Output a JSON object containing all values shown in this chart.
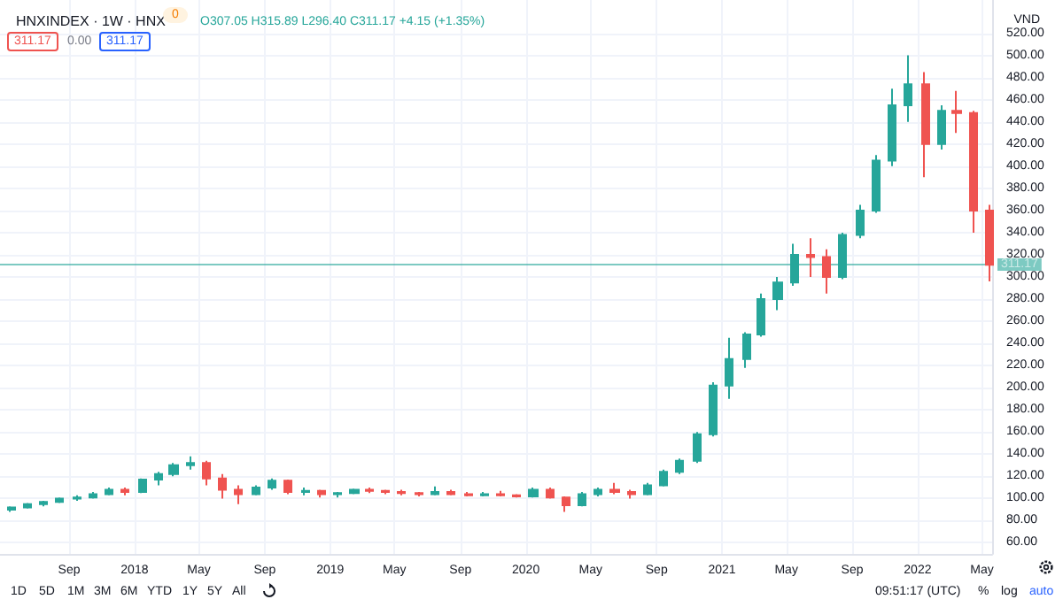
{
  "chart_data": {
    "type": "candlestick",
    "title": "HNXINDEX · 1W · HNX",
    "subtitle": "O307.05 H315.89 L296.40 C311.17 +4.15 (+1.35%)",
    "ylabel": "VND",
    "x": [
      "2017-05-15",
      "2017-06-15",
      "2017-07-15",
      "2017-08-15",
      "2017-09-15",
      "2017-10-15",
      "2017-11-15",
      "2017-12-15",
      "2018-01-15",
      "2018-02-15",
      "2018-03-15",
      "2018-04-15",
      "2018-05-15",
      "2018-06-15",
      "2018-07-15",
      "2018-08-15",
      "2018-09-15",
      "2018-10-15",
      "2018-11-15",
      "2018-12-15",
      "2019-01-15",
      "2019-02-15",
      "2019-03-15",
      "2019-04-15",
      "2019-05-15",
      "2019-06-15",
      "2019-07-15",
      "2019-08-15",
      "2019-09-15",
      "2019-10-15",
      "2019-11-15",
      "2019-12-15",
      "2020-01-15",
      "2020-02-15",
      "2020-03-15",
      "2020-04-15",
      "2020-05-15",
      "2020-06-15",
      "2020-07-15",
      "2020-08-15",
      "2020-09-15",
      "2020-10-15",
      "2020-11-15",
      "2020-12-15",
      "2021-01-15",
      "2021-02-15",
      "2021-03-15",
      "2021-04-15",
      "2021-05-15",
      "2021-06-15",
      "2021-07-15",
      "2021-08-15",
      "2021-09-15",
      "2021-10-15",
      "2021-11-15",
      "2021-12-15",
      "2022-01-15",
      "2022-02-15",
      "2022-03-15",
      "2022-04-15",
      "2022-05-15"
    ],
    "ohlc": [
      [
        90,
        93,
        88,
        92
      ],
      [
        92,
        96,
        91,
        95
      ],
      [
        95,
        98,
        93,
        97
      ],
      [
        97,
        101,
        96,
        100
      ],
      [
        100,
        103,
        98,
        101
      ],
      [
        101,
        106,
        100,
        104
      ],
      [
        104,
        110,
        103,
        108
      ],
      [
        108,
        110,
        103,
        106
      ],
      [
        106,
        118,
        105,
        117
      ],
      [
        117,
        124,
        112,
        122
      ],
      [
        122,
        132,
        120,
        130
      ],
      [
        130,
        138,
        126,
        132
      ],
      [
        132,
        134,
        112,
        118
      ],
      [
        118,
        122,
        100,
        108
      ],
      [
        108,
        112,
        95,
        104
      ],
      [
        104,
        112,
        103,
        110
      ],
      [
        110,
        118,
        108,
        116
      ],
      [
        116,
        117,
        104,
        106
      ],
      [
        106,
        110,
        103,
        107
      ],
      [
        107,
        108,
        101,
        104
      ],
      [
        104,
        106,
        101,
        105
      ],
      [
        105,
        109,
        104,
        108
      ],
      [
        108,
        110,
        105,
        107
      ],
      [
        107,
        108,
        104,
        106
      ],
      [
        106,
        108,
        103,
        105
      ],
      [
        105,
        106,
        102,
        104
      ],
      [
        104,
        111,
        103,
        106
      ],
      [
        106,
        108,
        103,
        104
      ],
      [
        104,
        106,
        102,
        103
      ],
      [
        103,
        106,
        102,
        104
      ],
      [
        104,
        107,
        102,
        103
      ],
      [
        103,
        104,
        101,
        102
      ],
      [
        102,
        110,
        101,
        108
      ],
      [
        108,
        110,
        100,
        101
      ],
      [
        101,
        102,
        88,
        94
      ],
      [
        94,
        106,
        93,
        104
      ],
      [
        104,
        110,
        102,
        108
      ],
      [
        108,
        114,
        104,
        106
      ],
      [
        106,
        108,
        100,
        104
      ],
      [
        104,
        114,
        103,
        112
      ],
      [
        112,
        126,
        111,
        124
      ],
      [
        124,
        136,
        122,
        134
      ],
      [
        134,
        160,
        132,
        158
      ],
      [
        158,
        205,
        156,
        202
      ],
      [
        202,
        245,
        190,
        226
      ],
      [
        226,
        250,
        218,
        248
      ],
      [
        248,
        285,
        246,
        280
      ],
      [
        280,
        300,
        270,
        295
      ],
      [
        295,
        330,
        292,
        320
      ],
      [
        320,
        335,
        300,
        318
      ],
      [
        318,
        325,
        285,
        300
      ],
      [
        300,
        340,
        298,
        338
      ],
      [
        338,
        365,
        335,
        360
      ],
      [
        360,
        410,
        358,
        405
      ],
      [
        405,
        470,
        400,
        455
      ],
      [
        455,
        500,
        440,
        474
      ],
      [
        474,
        485,
        390,
        420
      ],
      [
        420,
        455,
        415,
        450
      ],
      [
        450,
        468,
        430,
        448
      ],
      [
        448,
        450,
        340,
        360
      ],
      [
        360,
        365,
        296,
        311
      ]
    ],
    "colors": [
      "#26a69a",
      "#26a69a",
      "#26a69a",
      "#26a69a",
      "#26a69a",
      "#26a69a",
      "#26a69a",
      "#ef5350",
      "#26a69a",
      "#26a69a",
      "#26a69a",
      "#26a69a",
      "#ef5350",
      "#ef5350",
      "#ef5350",
      "#26a69a",
      "#26a69a",
      "#ef5350",
      "#26a69a",
      "#ef5350",
      "#26a69a",
      "#26a69a",
      "#ef5350",
      "#ef5350",
      "#ef5350",
      "#ef5350",
      "#26a69a",
      "#ef5350",
      "#ef5350",
      "#26a69a",
      "#ef5350",
      "#ef5350",
      "#26a69a",
      "#ef5350",
      "#ef5350",
      "#26a69a",
      "#26a69a",
      "#ef5350",
      "#ef5350",
      "#26a69a",
      "#26a69a",
      "#26a69a",
      "#26a69a",
      "#26a69a",
      "#26a69a",
      "#26a69a",
      "#26a69a",
      "#26a69a",
      "#26a69a",
      "#ef5350",
      "#ef5350",
      "#26a69a",
      "#26a69a",
      "#26a69a",
      "#26a69a",
      "#26a69a",
      "#ef5350",
      "#26a69a",
      "#ef5350",
      "#ef5350",
      "#ef5350"
    ],
    "xlim": [
      "2017-04-25",
      "2022-05-20"
    ],
    "xticks": [
      {
        "value": "2017-09-01",
        "label": "Sep"
      },
      {
        "value": "2018-01-01",
        "label": "2018"
      },
      {
        "value": "2018-05-01",
        "label": "May"
      },
      {
        "value": "2018-09-01",
        "label": "Sep"
      },
      {
        "value": "2019-01-01",
        "label": "2019"
      },
      {
        "value": "2019-05-01",
        "label": "May"
      },
      {
        "value": "2019-09-01",
        "label": "Sep"
      },
      {
        "value": "2020-01-01",
        "label": "2020"
      },
      {
        "value": "2020-05-01",
        "label": "May"
      },
      {
        "value": "2020-09-01",
        "label": "Sep"
      },
      {
        "value": "2021-01-01",
        "label": "2021"
      },
      {
        "value": "2021-05-01",
        "label": "May"
      },
      {
        "value": "2021-09-01",
        "label": "Sep"
      },
      {
        "value": "2022-01-01",
        "label": "2022"
      },
      {
        "value": "2022-05-01",
        "label": "May"
      }
    ],
    "ylim": [
      50,
      550
    ],
    "yticks": [
      {
        "value": 60,
        "label": "60.00"
      },
      {
        "value": 80,
        "label": "80.00"
      },
      {
        "value": 100,
        "label": "100.00"
      },
      {
        "value": 120,
        "label": "120.00"
      },
      {
        "value": 140,
        "label": "140.00"
      },
      {
        "value": 160,
        "label": "160.00"
      },
      {
        "value": 180,
        "label": "180.00"
      },
      {
        "value": 200,
        "label": "200.00"
      },
      {
        "value": 220,
        "label": "220.00"
      },
      {
        "value": 240,
        "label": "240.00"
      },
      {
        "value": 260,
        "label": "260.00"
      },
      {
        "value": 280,
        "label": "280.00"
      },
      {
        "value": 300,
        "label": "300.00"
      },
      {
        "value": 320,
        "label": "320.00"
      },
      {
        "value": 340,
        "label": "340.00"
      },
      {
        "value": 360,
        "label": "360.00"
      },
      {
        "value": 380,
        "label": "380.00"
      },
      {
        "value": 400,
        "label": "400.00"
      },
      {
        "value": 420,
        "label": "420.00"
      },
      {
        "value": 440,
        "label": "440.00"
      },
      {
        "value": 460,
        "label": "460.00"
      },
      {
        "value": 480,
        "label": "480.00"
      },
      {
        "value": 500,
        "label": "500.00"
      },
      {
        "value": 520,
        "label": "520.00"
      }
    ],
    "ref_lines": [
      {
        "axis": "y",
        "value": 311.17,
        "label": "311.17",
        "color": "#26a69a"
      }
    ],
    "grid": true,
    "annotations": [
      "0",
      "311.17",
      "0.00",
      "311.17",
      "1D",
      "5D",
      "1M",
      "3M",
      "6M",
      "YTD",
      "1Y",
      "5Y",
      "All",
      "09:51:17 (UTC)",
      "%",
      "log",
      "auto"
    ]
  }
}
